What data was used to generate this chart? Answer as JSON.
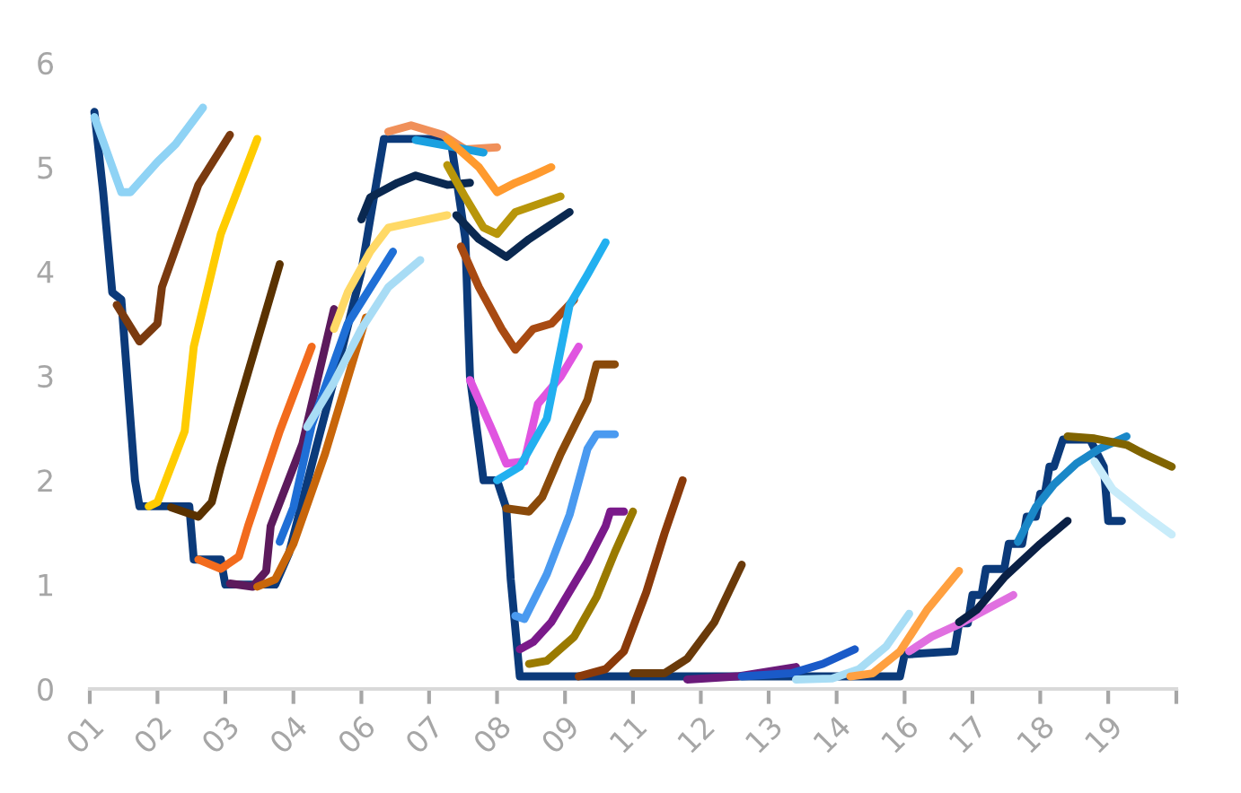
{
  "chart_data": {
    "type": "line",
    "xlim": [
      "2001-01",
      "2021-01"
    ],
    "ylim": [
      0,
      6
    ],
    "xticks": [
      {
        "value": "2001-01",
        "label": "01"
      },
      {
        "value": "2002-04",
        "label": "02"
      },
      {
        "value": "2003-07",
        "label": "03"
      },
      {
        "value": "2004-10",
        "label": "04"
      },
      {
        "value": "2006-01",
        "label": "06"
      },
      {
        "value": "2007-04",
        "label": "07"
      },
      {
        "value": "2008-07",
        "label": "08"
      },
      {
        "value": "2009-10",
        "label": "09"
      },
      {
        "value": "2011-01",
        "label": "11"
      },
      {
        "value": "2012-04",
        "label": "12"
      },
      {
        "value": "2013-07",
        "label": "13"
      },
      {
        "value": "2014-10",
        "label": "14"
      },
      {
        "value": "2016-01",
        "label": "16"
      },
      {
        "value": "2017-04",
        "label": "17"
      },
      {
        "value": "2018-07",
        "label": "18"
      },
      {
        "value": "2019-10",
        "label": "19"
      },
      {
        "value": "2021-01",
        "label": null
      }
    ],
    "yticks": [
      0,
      1,
      2,
      3,
      4,
      5,
      6
    ],
    "grid": false,
    "legend": false,
    "series": [
      {
        "color": "#0b3a7a",
        "x": [
          "2001-02",
          "2001-04",
          "2001-06",
          "2001-08",
          "2001-11",
          "2001-12",
          "2002-11",
          "2002-12",
          "2003-06",
          "2003-07",
          "2004-06",
          "2004-09",
          "2005-03",
          "2005-09",
          "2006-01",
          "2006-03",
          "2006-06",
          "2007-08",
          "2007-09",
          "2007-12",
          "2008-01",
          "2008-04",
          "2008-07",
          "2008-09",
          "2008-10",
          "2008-12",
          "2015-12",
          "2016-01",
          "2016-12",
          "2017-01",
          "2017-03",
          "2017-04",
          "2017-06",
          "2017-07",
          "2017-11",
          "2017-12",
          "2018-03",
          "2018-04",
          "2018-06",
          "2018-07",
          "2018-08",
          "2018-09",
          "2018-10",
          "2018-12",
          "2019-06",
          "2019-09",
          "2019-10",
          "2020-01"
        ],
        "values": [
          5.53,
          4.76,
          3.8,
          3.73,
          2.0,
          1.75,
          1.75,
          1.24,
          1.24,
          1.0,
          1.0,
          1.3,
          2.3,
          3.3,
          4.0,
          4.5,
          5.27,
          5.27,
          5.19,
          4.31,
          2.99,
          2.0,
          2.0,
          1.73,
          1.05,
          0.12,
          0.12,
          0.33,
          0.36,
          0.63,
          0.63,
          0.9,
          0.9,
          1.15,
          1.15,
          1.39,
          1.39,
          1.65,
          1.65,
          1.87,
          1.87,
          2.13,
          2.13,
          2.39,
          2.39,
          2.13,
          1.61,
          1.61
        ]
      },
      {
        "color": "#8fd3f5",
        "x": [
          "2001-02",
          "2001-08",
          "2001-10",
          "2002-04",
          "2002-08",
          "2003-02"
        ],
        "values": [
          5.48,
          4.76,
          4.76,
          5.05,
          5.22,
          5.57
        ]
      },
      {
        "color": "#7a3a0f",
        "x": [
          "2001-07",
          "2001-12",
          "2002-04",
          "2002-05",
          "2003-01",
          "2003-08"
        ],
        "values": [
          3.68,
          3.33,
          3.5,
          3.85,
          4.83,
          5.31
        ]
      },
      {
        "color": "#ffcc00",
        "x": [
          "2002-02",
          "2002-04",
          "2002-10",
          "2002-12",
          "2003-06",
          "2004-02"
        ],
        "values": [
          1.75,
          1.79,
          2.47,
          3.28,
          4.36,
          5.27
        ]
      },
      {
        "color": "#5a3200",
        "x": [
          "2002-07",
          "2003-01",
          "2003-04",
          "2003-06",
          "2003-09",
          "2004-07"
        ],
        "values": [
          1.74,
          1.65,
          1.79,
          2.13,
          2.59,
          4.07
        ]
      },
      {
        "color": "#f26b1d",
        "x": [
          "2003-01",
          "2003-06",
          "2003-10",
          "2003-12",
          "2004-07",
          "2005-02"
        ],
        "values": [
          1.24,
          1.15,
          1.27,
          1.56,
          2.47,
          3.28
        ]
      },
      {
        "color": "#5c1a5c",
        "x": [
          "2003-08",
          "2004-01",
          "2004-04",
          "2004-05",
          "2004-12",
          "2005-07"
        ],
        "values": [
          1.01,
          0.98,
          1.13,
          1.56,
          2.35,
          3.64
        ]
      },
      {
        "color": "#c8660a",
        "x": [
          "2004-02",
          "2004-06",
          "2004-10",
          "2005-05",
          "2006-02"
        ],
        "values": [
          0.98,
          1.05,
          1.39,
          2.25,
          3.56
        ]
      },
      {
        "color": "#1f6fd6",
        "x": [
          "2004-07",
          "2004-10",
          "2005-02",
          "2005-10",
          "2006-08"
        ],
        "values": [
          1.41,
          1.74,
          2.53,
          3.5,
          4.19
        ]
      },
      {
        "color": "#a8dcf5",
        "x": [
          "2005-01",
          "2005-07",
          "2006-01",
          "2006-07",
          "2007-02"
        ],
        "values": [
          2.51,
          2.94,
          3.45,
          3.85,
          4.11
        ]
      },
      {
        "color": "#ffd966",
        "x": [
          "2005-07",
          "2005-10",
          "2006-03",
          "2006-07",
          "2007-08"
        ],
        "values": [
          3.45,
          3.8,
          4.19,
          4.42,
          4.54
        ]
      },
      {
        "color": "#0a2850",
        "x": [
          "2006-01",
          "2006-03",
          "2006-09",
          "2007-01",
          "2007-08",
          "2008-01"
        ],
        "values": [
          4.5,
          4.71,
          4.85,
          4.92,
          4.83,
          4.85
        ]
      },
      {
        "color": "#f0905a",
        "x": [
          "2006-07",
          "2006-12",
          "2007-07",
          "2007-12",
          "2008-07"
        ],
        "values": [
          5.34,
          5.4,
          5.31,
          5.17,
          5.19
        ]
      },
      {
        "color": "#1aa0e0",
        "x": [
          "2007-01",
          "2008-04"
        ],
        "values": [
          5.26,
          5.14
        ]
      },
      {
        "color": "#ff9a2e",
        "x": [
          "2007-08",
          "2008-03",
          "2008-07",
          "2008-11",
          "2009-03",
          "2009-07"
        ],
        "values": [
          5.27,
          5.0,
          4.76,
          4.85,
          4.92,
          5.0
        ]
      },
      {
        "color": "#b8960a",
        "x": [
          "2007-08",
          "2007-12",
          "2008-04",
          "2008-07",
          "2008-11",
          "2009-09"
        ],
        "values": [
          5.02,
          4.71,
          4.42,
          4.36,
          4.57,
          4.72
        ]
      },
      {
        "color": "#0a2850",
        "x": [
          "2007-10",
          "2008-03",
          "2008-09",
          "2009-02",
          "2009-11"
        ],
        "values": [
          4.54,
          4.31,
          4.14,
          4.31,
          4.57
        ]
      },
      {
        "color": "#a84a12",
        "x": [
          "2007-11",
          "2008-03",
          "2008-08",
          "2008-11",
          "2009-03",
          "2009-07",
          "2009-12"
        ],
        "values": [
          4.24,
          3.85,
          3.45,
          3.25,
          3.45,
          3.5,
          3.73
        ]
      },
      {
        "color": "#e055e0",
        "x": [
          "2008-01",
          "2008-06",
          "2008-09",
          "2009-01",
          "2009-04",
          "2009-09",
          "2010-01"
        ],
        "values": [
          2.96,
          2.47,
          2.16,
          2.18,
          2.73,
          2.99,
          3.28
        ]
      },
      {
        "color": "#22b0f0",
        "x": [
          "2008-07",
          "2008-12",
          "2009-06",
          "2009-11",
          "2010-03",
          "2010-07"
        ],
        "values": [
          2.0,
          2.13,
          2.59,
          3.68,
          3.97,
          4.28
        ]
      },
      {
        "color": "#8a4a0a",
        "x": [
          "2008-09",
          "2009-02",
          "2009-05",
          "2009-09",
          "2010-03",
          "2010-05",
          "2010-09"
        ],
        "values": [
          1.73,
          1.7,
          1.84,
          2.25,
          2.77,
          3.11,
          3.11
        ]
      },
      {
        "color": "#4a9af0",
        "x": [
          "2008-11",
          "2009-01",
          "2009-06",
          "2009-11",
          "2010-03",
          "2010-05",
          "2010-09"
        ],
        "values": [
          0.7,
          0.67,
          1.1,
          1.67,
          2.3,
          2.44,
          2.44
        ]
      },
      {
        "color": "#7a1a8a",
        "x": [
          "2008-12",
          "2009-03",
          "2009-07",
          "2010-03",
          "2010-07",
          "2010-08",
          "2010-11"
        ],
        "values": [
          0.38,
          0.45,
          0.64,
          1.22,
          1.56,
          1.7,
          1.7
        ]
      },
      {
        "color": "#9a7a00",
        "x": [
          "2009-02",
          "2009-06",
          "2009-12",
          "2010-05",
          "2010-09",
          "2011-01"
        ],
        "values": [
          0.24,
          0.27,
          0.5,
          0.88,
          1.31,
          1.7
        ]
      },
      {
        "color": "#8a3a0a",
        "x": [
          "2010-01",
          "2010-07",
          "2010-11",
          "2011-04",
          "2011-08",
          "2011-12"
        ],
        "values": [
          0.12,
          0.19,
          0.36,
          0.93,
          1.49,
          2.0
        ]
      },
      {
        "color": "#6a3a0a",
        "x": [
          "2011-01",
          "2011-08",
          "2012-01",
          "2012-07",
          "2013-01"
        ],
        "values": [
          0.15,
          0.15,
          0.29,
          0.64,
          1.19
        ]
      },
      {
        "color": "#6a1a7a",
        "x": [
          "2012-01",
          "2012-12",
          "2014-01"
        ],
        "values": [
          0.09,
          0.12,
          0.21
        ]
      },
      {
        "color": "#1a5ac8",
        "x": [
          "2013-01",
          "2013-12",
          "2014-07",
          "2015-02"
        ],
        "values": [
          0.12,
          0.15,
          0.24,
          0.38
        ]
      },
      {
        "color": "#a8ddf5",
        "x": [
          "2014-01",
          "2014-09",
          "2015-03",
          "2015-09",
          "2016-02"
        ],
        "values": [
          0.09,
          0.1,
          0.19,
          0.41,
          0.72
        ]
      },
      {
        "color": "#ffa040",
        "x": [
          "2015-01",
          "2015-06",
          "2015-12",
          "2016-06",
          "2017-01"
        ],
        "values": [
          0.12,
          0.15,
          0.36,
          0.76,
          1.13
        ]
      },
      {
        "color": "#e070e0",
        "x": [
          "2016-02",
          "2016-07",
          "2017-01",
          "2017-07",
          "2018-01"
        ],
        "values": [
          0.36,
          0.5,
          0.62,
          0.76,
          0.9
        ]
      },
      {
        "color": "#0a2045",
        "x": [
          "2017-01",
          "2017-05",
          "2017-11",
          "2018-07",
          "2019-01"
        ],
        "values": [
          0.64,
          0.76,
          1.07,
          1.39,
          1.61
        ]
      },
      {
        "color": "#1a88c8",
        "x": [
          "2018-02",
          "2018-06",
          "2018-10",
          "2019-03",
          "2019-08",
          "2020-02"
        ],
        "values": [
          1.41,
          1.74,
          1.96,
          2.16,
          2.3,
          2.42
        ]
      },
      {
        "color": "#c8ecfa",
        "x": [
          "2019-07",
          "2019-11",
          "2020-06",
          "2020-12"
        ],
        "values": [
          2.18,
          1.91,
          1.67,
          1.48
        ]
      },
      {
        "color": "#806400",
        "x": [
          "2019-01",
          "2019-07",
          "2020-02",
          "2020-06",
          "2020-12"
        ],
        "values": [
          2.42,
          2.4,
          2.34,
          2.25,
          2.13
        ]
      }
    ]
  }
}
